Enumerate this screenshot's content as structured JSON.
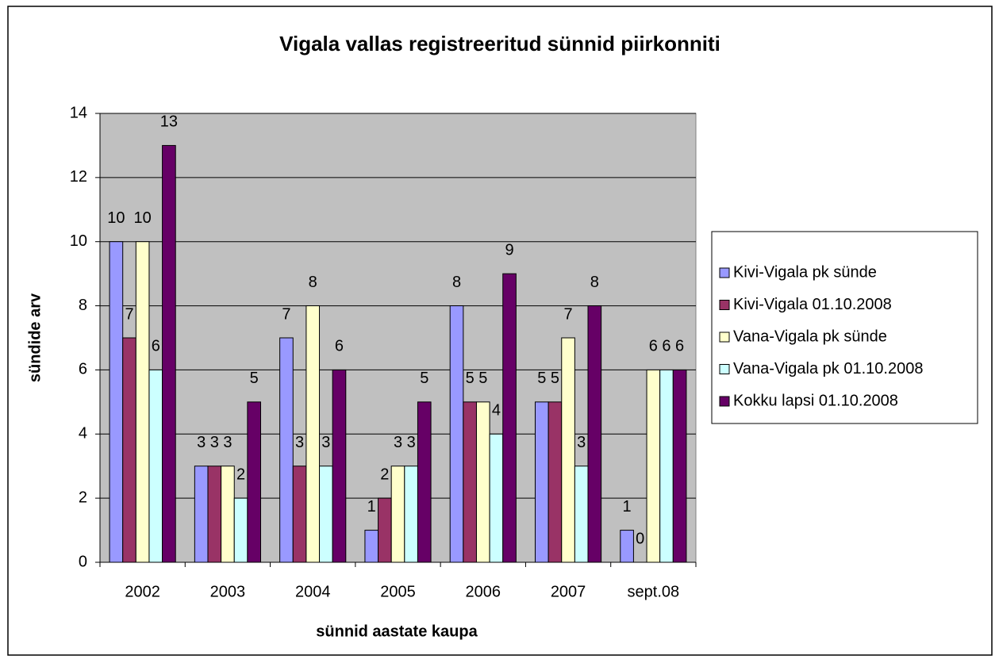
{
  "chart_data": {
    "type": "bar",
    "title": "Vigala vallas registreeritud sünnid piirkonniti",
    "x_label": "sünnid aastate kaupa",
    "y_label": "sündide arv",
    "categories": [
      "2002",
      "2003",
      "2004",
      "2005",
      "2006",
      "2007",
      "sept.08"
    ],
    "series": [
      {
        "name": "Kivi-Vigala pk sünde",
        "color": "#9999ff",
        "values": [
          10,
          3,
          7,
          1,
          8,
          5,
          1
        ]
      },
      {
        "name": "Kivi-Vigala 01.10.2008",
        "color": "#993366",
        "values": [
          7,
          3,
          3,
          2,
          5,
          5,
          0
        ]
      },
      {
        "name": "Vana-Vigala pk sünde",
        "color": "#ffffcc",
        "values": [
          10,
          3,
          8,
          3,
          5,
          7,
          6
        ]
      },
      {
        "name": "Vana-Vigala pk 01.10.2008",
        "color": "#ccffff",
        "values": [
          6,
          2,
          3,
          3,
          4,
          3,
          6
        ]
      },
      {
        "name": "Kokku lapsi 01.10.2008",
        "color": "#660066",
        "values": [
          13,
          5,
          6,
          5,
          9,
          8,
          6
        ]
      }
    ],
    "ylim": [
      0,
      14
    ],
    "yticks": [
      0,
      2,
      4,
      6,
      8,
      10,
      12,
      14
    ],
    "grid": true,
    "legend": "right",
    "plot_background": "#c0c0c0"
  }
}
